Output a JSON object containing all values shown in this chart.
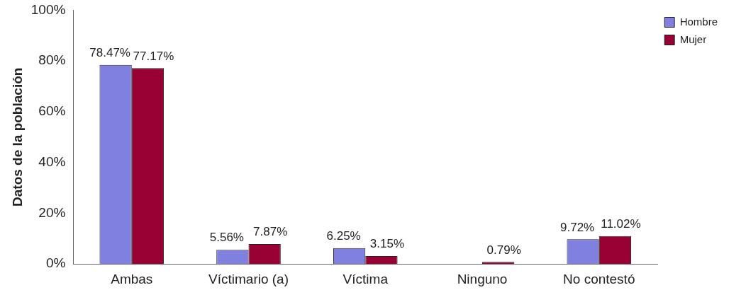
{
  "chart_data": {
    "type": "bar",
    "ylabel": "Datos de la población",
    "categories": [
      "Ambas",
      "Víctimario (a)",
      "Víctima",
      "Ninguno",
      "No contestó"
    ],
    "series": [
      {
        "name": "Hombre",
        "color": "#8080e0",
        "values": [
          78.47,
          5.56,
          6.25,
          0,
          9.72
        ],
        "value_labels": [
          "78.47%",
          "5.56%",
          "6.25%",
          null,
          "9.72%"
        ]
      },
      {
        "name": "Mujer",
        "color": "#990033",
        "values": [
          77.17,
          7.87,
          3.15,
          0.79,
          11.02
        ],
        "value_labels": [
          "77.17%",
          "7.87%",
          "3.15%",
          "0.79%",
          "11.02%"
        ]
      }
    ],
    "ylim": [
      0,
      100
    ],
    "yticks": [
      {
        "value": 0,
        "label": "0%"
      },
      {
        "value": 20,
        "label": "20%"
      },
      {
        "value": 40,
        "label": "40%"
      },
      {
        "value": 60,
        "label": "60%"
      },
      {
        "value": 80,
        "label": "80%"
      },
      {
        "value": 100,
        "label": "100%"
      }
    ],
    "grid": false,
    "legend": "top right"
  }
}
